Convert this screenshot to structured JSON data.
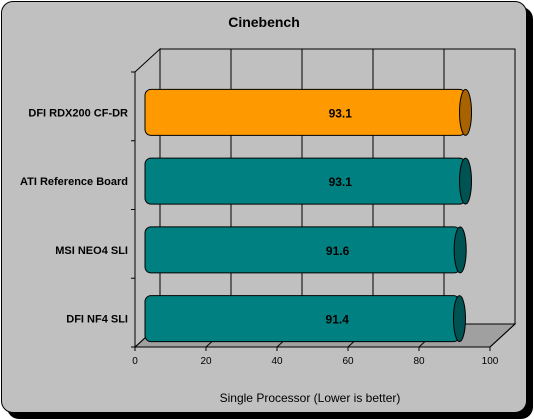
{
  "chart_data": {
    "type": "bar",
    "orientation": "horizontal",
    "title": "Cinebench",
    "xlabel": "Single Processor (Lower is better)",
    "ylabel": "",
    "categories": [
      "DFI RDX200 CF-DR",
      "ATI Reference Board",
      "MSI NEO4 SLI",
      "DFI NF4 SLI"
    ],
    "series": [
      {
        "values": [
          93.1,
          93.1,
          91.6,
          91.4
        ]
      }
    ],
    "bar_colors": [
      "#ff9900",
      "#008080",
      "#008080",
      "#008080"
    ],
    "xlim": [
      0,
      100
    ],
    "xticks": [
      "0",
      "20",
      "40",
      "60",
      "80",
      "100"
    ],
    "grid": true,
    "legend": "none",
    "colors": {
      "background": "#c0c0c0",
      "wall": "#c0c0c0",
      "floor": "#a0a0a0",
      "grid": "#000000",
      "highlight_bar": "#ff9900",
      "bar": "#008080"
    }
  }
}
